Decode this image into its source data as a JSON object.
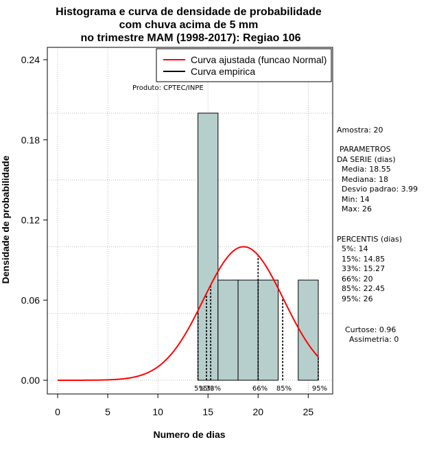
{
  "chart_data": {
    "type": "histogram",
    "title_lines": [
      "Histograma e curva de densidade de probabilidade",
      "com chuva acima de 5 mm",
      "no trimestre MAM (1998-2017): Regiao 106"
    ],
    "xlabel": "Numero de dias",
    "ylabel": "Densidade de probabilidade",
    "xlim": [
      0,
      26
    ],
    "ylim": [
      0,
      0.24
    ],
    "x_ticks": [
      0,
      5,
      10,
      15,
      20,
      25
    ],
    "x_tick_labels": [
      "0",
      "5",
      "10",
      "15",
      "20",
      "25"
    ],
    "y_ticks": [
      0.0,
      0.06,
      0.12,
      0.18,
      0.24
    ],
    "y_tick_labels": [
      "0.00",
      "0.06",
      "0.12",
      "0.18",
      "0.24"
    ],
    "bins": [
      {
        "x0": 14,
        "x1": 16,
        "density": 0.2
      },
      {
        "x0": 16,
        "x1": 18,
        "density": 0.075
      },
      {
        "x0": 18,
        "x1": 20,
        "density": 0.075
      },
      {
        "x0": 20,
        "x1": 22,
        "density": 0.075
      },
      {
        "x0": 22,
        "x1": 24,
        "density": 0.0
      },
      {
        "x0": 24,
        "x1": 26,
        "density": 0.075
      }
    ],
    "normal_fit": {
      "mean": 18.55,
      "sd": 3.99,
      "x_from": 0,
      "x_to": 26
    },
    "percentile_lines": [
      {
        "label": "5%",
        "x": 14
      },
      {
        "label": "15%",
        "x": 14.85
      },
      {
        "label": "33%",
        "x": 15.27
      },
      {
        "label": "66%",
        "x": 20
      },
      {
        "label": "85%",
        "x": 22.45
      },
      {
        "label": "95%",
        "x": 26
      }
    ],
    "legend": [
      {
        "label": "Curva ajustada (funcao Normal)",
        "color": "#ff0000"
      },
      {
        "label": "Curva empirica",
        "color": "#000000"
      }
    ],
    "product_credit": "Produto: CPTEC/INPE",
    "colors": {
      "bar_fill": "#b6cfcc",
      "bar_stroke": "#000000",
      "curve": "#ff0000",
      "grid": "#bbbbbb"
    }
  },
  "stats": {
    "amostra": "Amostra: 20",
    "param_title_1": "PARAMETROS",
    "param_title_2": "DA SERIE (dias)",
    "media": "Media: 18.55",
    "mediana": "Mediana: 18",
    "desvio": "Desvio padrao: 3.99",
    "min": "Min: 14",
    "max": "Max: 26",
    "perc_title": "PERCENTIS (dias)",
    "p5": "5%: 14",
    "p15": "15%: 14.85",
    "p33": "33%: 15.27",
    "p66": "66%: 20",
    "p85": "85%: 22.45",
    "p95": "95%: 26",
    "curtose": "Curtose: 0.96",
    "assimetria": "Assimetria: 0"
  }
}
